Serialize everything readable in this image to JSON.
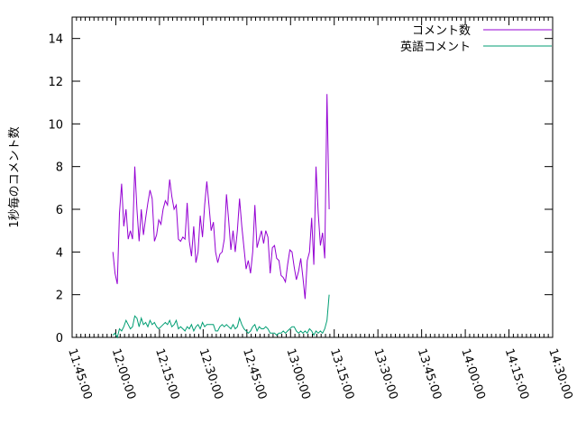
{
  "chart_data": {
    "type": "line",
    "title": "",
    "xlabel": "",
    "ylabel": "1秒毎のコメント数",
    "ylim": [
      0,
      15
    ],
    "yticks": [
      "0",
      "2",
      "4",
      "6",
      "8",
      "10",
      "12",
      "14"
    ],
    "xticks": [
      "11:45:00",
      "12:00:00",
      "12:15:00",
      "12:30:00",
      "12:45:00",
      "13:00:00",
      "13:15:00",
      "13:30:00",
      "13:45:00",
      "14:00:00",
      "14:15:00",
      "14:30:00"
    ],
    "xlim": [
      "11:45:00",
      "14:30:00"
    ],
    "legend_position": "top-right",
    "grid": false,
    "series": [
      {
        "name": "コメント数",
        "color": "#9400d3",
        "points": [
          [
            "11:59:00",
            4.0
          ],
          [
            "11:59:45",
            3.0
          ],
          [
            "12:00:30",
            2.5
          ],
          [
            "12:01:15",
            5.8
          ],
          [
            "12:02:00",
            7.2
          ],
          [
            "12:02:45",
            5.2
          ],
          [
            "12:03:30",
            6.0
          ],
          [
            "12:04:15",
            4.6
          ],
          [
            "12:05:00",
            5.0
          ],
          [
            "12:05:45",
            4.6
          ],
          [
            "12:06:30",
            8.0
          ],
          [
            "12:07:15",
            6.0
          ],
          [
            "12:08:00",
            4.5
          ],
          [
            "12:08:45",
            6.0
          ],
          [
            "12:09:30",
            4.8
          ],
          [
            "12:10:15",
            5.6
          ],
          [
            "12:11:00",
            6.3
          ],
          [
            "12:11:45",
            6.9
          ],
          [
            "12:12:30",
            6.5
          ],
          [
            "12:13:15",
            4.5
          ],
          [
            "12:14:00",
            4.8
          ],
          [
            "12:14:45",
            5.5
          ],
          [
            "12:15:30",
            5.3
          ],
          [
            "12:16:15",
            6.0
          ],
          [
            "12:17:00",
            6.4
          ],
          [
            "12:17:45",
            6.2
          ],
          [
            "12:18:30",
            7.4
          ],
          [
            "12:19:15",
            6.6
          ],
          [
            "12:20:00",
            6.0
          ],
          [
            "12:20:45",
            6.2
          ],
          [
            "12:21:30",
            4.6
          ],
          [
            "12:22:15",
            4.5
          ],
          [
            "12:23:00",
            4.7
          ],
          [
            "12:23:45",
            4.6
          ],
          [
            "12:24:30",
            6.3
          ],
          [
            "12:25:15",
            4.5
          ],
          [
            "12:26:00",
            3.8
          ],
          [
            "12:26:45",
            5.2
          ],
          [
            "12:27:30",
            3.5
          ],
          [
            "12:28:15",
            4.0
          ],
          [
            "12:29:00",
            5.7
          ],
          [
            "12:29:45",
            4.7
          ],
          [
            "12:30:30",
            6.2
          ],
          [
            "12:31:15",
            7.3
          ],
          [
            "12:32:00",
            6.2
          ],
          [
            "12:32:45",
            5.0
          ],
          [
            "12:33:30",
            5.4
          ],
          [
            "12:34:15",
            4.0
          ],
          [
            "12:35:00",
            3.5
          ],
          [
            "12:35:45",
            3.9
          ],
          [
            "12:36:30",
            4.0
          ],
          [
            "12:37:15",
            4.6
          ],
          [
            "12:38:00",
            6.7
          ],
          [
            "12:38:45",
            5.5
          ],
          [
            "12:39:30",
            4.1
          ],
          [
            "12:40:15",
            5.0
          ],
          [
            "12:41:00",
            4.0
          ],
          [
            "12:41:45",
            5.0
          ],
          [
            "12:42:30",
            6.5
          ],
          [
            "12:43:15",
            5.2
          ],
          [
            "12:44:00",
            4.2
          ],
          [
            "12:44:45",
            3.2
          ],
          [
            "12:45:30",
            3.6
          ],
          [
            "12:46:15",
            3.0
          ],
          [
            "12:47:00",
            4.0
          ],
          [
            "12:47:45",
            6.2
          ],
          [
            "12:48:30",
            4.2
          ],
          [
            "12:49:15",
            4.6
          ],
          [
            "12:50:00",
            5.0
          ],
          [
            "12:50:45",
            4.4
          ],
          [
            "12:51:30",
            5.0
          ],
          [
            "12:52:15",
            4.7
          ],
          [
            "12:53:00",
            3.0
          ],
          [
            "12:53:45",
            4.2
          ],
          [
            "12:54:30",
            4.3
          ],
          [
            "12:55:15",
            3.7
          ],
          [
            "12:56:00",
            3.6
          ],
          [
            "12:56:45",
            2.9
          ],
          [
            "12:57:30",
            2.8
          ],
          [
            "12:58:15",
            2.6
          ],
          [
            "12:59:00",
            3.4
          ],
          [
            "12:59:45",
            4.1
          ],
          [
            "13:00:30",
            4.0
          ],
          [
            "13:01:15",
            3.3
          ],
          [
            "13:02:00",
            2.7
          ],
          [
            "13:02:45",
            3.1
          ],
          [
            "13:03:30",
            3.7
          ],
          [
            "13:04:15",
            2.8
          ],
          [
            "13:05:00",
            1.8
          ],
          [
            "13:05:45",
            3.6
          ],
          [
            "13:06:30",
            4.0
          ],
          [
            "13:07:15",
            5.6
          ],
          [
            "13:08:00",
            3.4
          ],
          [
            "13:08:45",
            8.0
          ],
          [
            "13:09:30",
            5.8
          ],
          [
            "13:10:15",
            4.3
          ],
          [
            "13:11:00",
            4.9
          ],
          [
            "13:11:45",
            3.7
          ],
          [
            "13:12:30",
            11.4
          ],
          [
            "13:13:15",
            6.0
          ]
        ]
      },
      {
        "name": "英語コメント",
        "color": "#009e73",
        "points": [
          [
            "11:59:00",
            0.1
          ],
          [
            "11:59:45",
            0.2
          ],
          [
            "12:00:30",
            0.0
          ],
          [
            "12:01:15",
            0.4
          ],
          [
            "12:02:00",
            0.3
          ],
          [
            "12:02:45",
            0.5
          ],
          [
            "12:03:30",
            0.8
          ],
          [
            "12:04:15",
            0.6
          ],
          [
            "12:05:00",
            0.4
          ],
          [
            "12:05:45",
            0.5
          ],
          [
            "12:06:30",
            1.0
          ],
          [
            "12:07:15",
            0.9
          ],
          [
            "12:08:00",
            0.5
          ],
          [
            "12:08:45",
            0.9
          ],
          [
            "12:09:30",
            0.6
          ],
          [
            "12:10:15",
            0.7
          ],
          [
            "12:11:00",
            0.5
          ],
          [
            "12:11:45",
            0.8
          ],
          [
            "12:12:30",
            0.6
          ],
          [
            "12:13:15",
            0.7
          ],
          [
            "12:14:00",
            0.5
          ],
          [
            "12:14:45",
            0.4
          ],
          [
            "12:15:30",
            0.5
          ],
          [
            "12:16:15",
            0.6
          ],
          [
            "12:17:00",
            0.7
          ],
          [
            "12:17:45",
            0.6
          ],
          [
            "12:18:30",
            0.8
          ],
          [
            "12:19:15",
            0.5
          ],
          [
            "12:20:00",
            0.6
          ],
          [
            "12:20:45",
            0.8
          ],
          [
            "12:21:30",
            0.4
          ],
          [
            "12:22:15",
            0.5
          ],
          [
            "12:23:00",
            0.4
          ],
          [
            "12:23:45",
            0.3
          ],
          [
            "12:24:30",
            0.5
          ],
          [
            "12:25:15",
            0.4
          ],
          [
            "12:26:00",
            0.6
          ],
          [
            "12:26:45",
            0.3
          ],
          [
            "12:27:30",
            0.5
          ],
          [
            "12:28:15",
            0.6
          ],
          [
            "12:29:00",
            0.4
          ],
          [
            "12:29:45",
            0.7
          ],
          [
            "12:30:30",
            0.5
          ],
          [
            "12:31:15",
            0.6
          ],
          [
            "12:32:00",
            0.6
          ],
          [
            "12:32:45",
            0.6
          ],
          [
            "12:33:30",
            0.6
          ],
          [
            "12:34:15",
            0.3
          ],
          [
            "12:35:00",
            0.3
          ],
          [
            "12:35:45",
            0.5
          ],
          [
            "12:36:30",
            0.6
          ],
          [
            "12:37:15",
            0.5
          ],
          [
            "12:38:00",
            0.6
          ],
          [
            "12:38:45",
            0.5
          ],
          [
            "12:39:30",
            0.4
          ],
          [
            "12:40:15",
            0.6
          ],
          [
            "12:41:00",
            0.4
          ],
          [
            "12:41:45",
            0.5
          ],
          [
            "12:42:30",
            0.9
          ],
          [
            "12:43:15",
            0.6
          ],
          [
            "12:44:00",
            0.4
          ],
          [
            "12:44:45",
            0.3
          ],
          [
            "12:45:30",
            0.2
          ],
          [
            "12:46:15",
            0.3
          ],
          [
            "12:47:00",
            0.5
          ],
          [
            "12:47:45",
            0.6
          ],
          [
            "12:48:30",
            0.3
          ],
          [
            "12:49:15",
            0.5
          ],
          [
            "12:50:00",
            0.4
          ],
          [
            "12:50:45",
            0.4
          ],
          [
            "12:51:30",
            0.5
          ],
          [
            "12:52:15",
            0.4
          ],
          [
            "12:53:00",
            0.2
          ],
          [
            "12:53:45",
            0.2
          ],
          [
            "12:54:30",
            0.2
          ],
          [
            "12:55:15",
            0.1
          ],
          [
            "12:56:00",
            0.2
          ],
          [
            "12:56:45",
            0.2
          ],
          [
            "12:57:30",
            0.3
          ],
          [
            "12:58:15",
            0.2
          ],
          [
            "12:59:00",
            0.3
          ],
          [
            "12:59:45",
            0.4
          ],
          [
            "13:00:30",
            0.5
          ],
          [
            "13:01:15",
            0.5
          ],
          [
            "13:02:00",
            0.3
          ],
          [
            "13:02:45",
            0.2
          ],
          [
            "13:03:30",
            0.3
          ],
          [
            "13:04:15",
            0.2
          ],
          [
            "13:05:00",
            0.3
          ],
          [
            "13:05:45",
            0.2
          ],
          [
            "13:06:30",
            0.4
          ],
          [
            "13:07:15",
            0.3
          ],
          [
            "13:08:00",
            0.1
          ],
          [
            "13:08:45",
            0.3
          ],
          [
            "13:09:30",
            0.2
          ],
          [
            "13:10:15",
            0.3
          ],
          [
            "13:11:00",
            0.2
          ],
          [
            "13:11:45",
            0.4
          ],
          [
            "13:12:30",
            0.8
          ],
          [
            "13:13:15",
            2.0
          ]
        ]
      }
    ]
  }
}
